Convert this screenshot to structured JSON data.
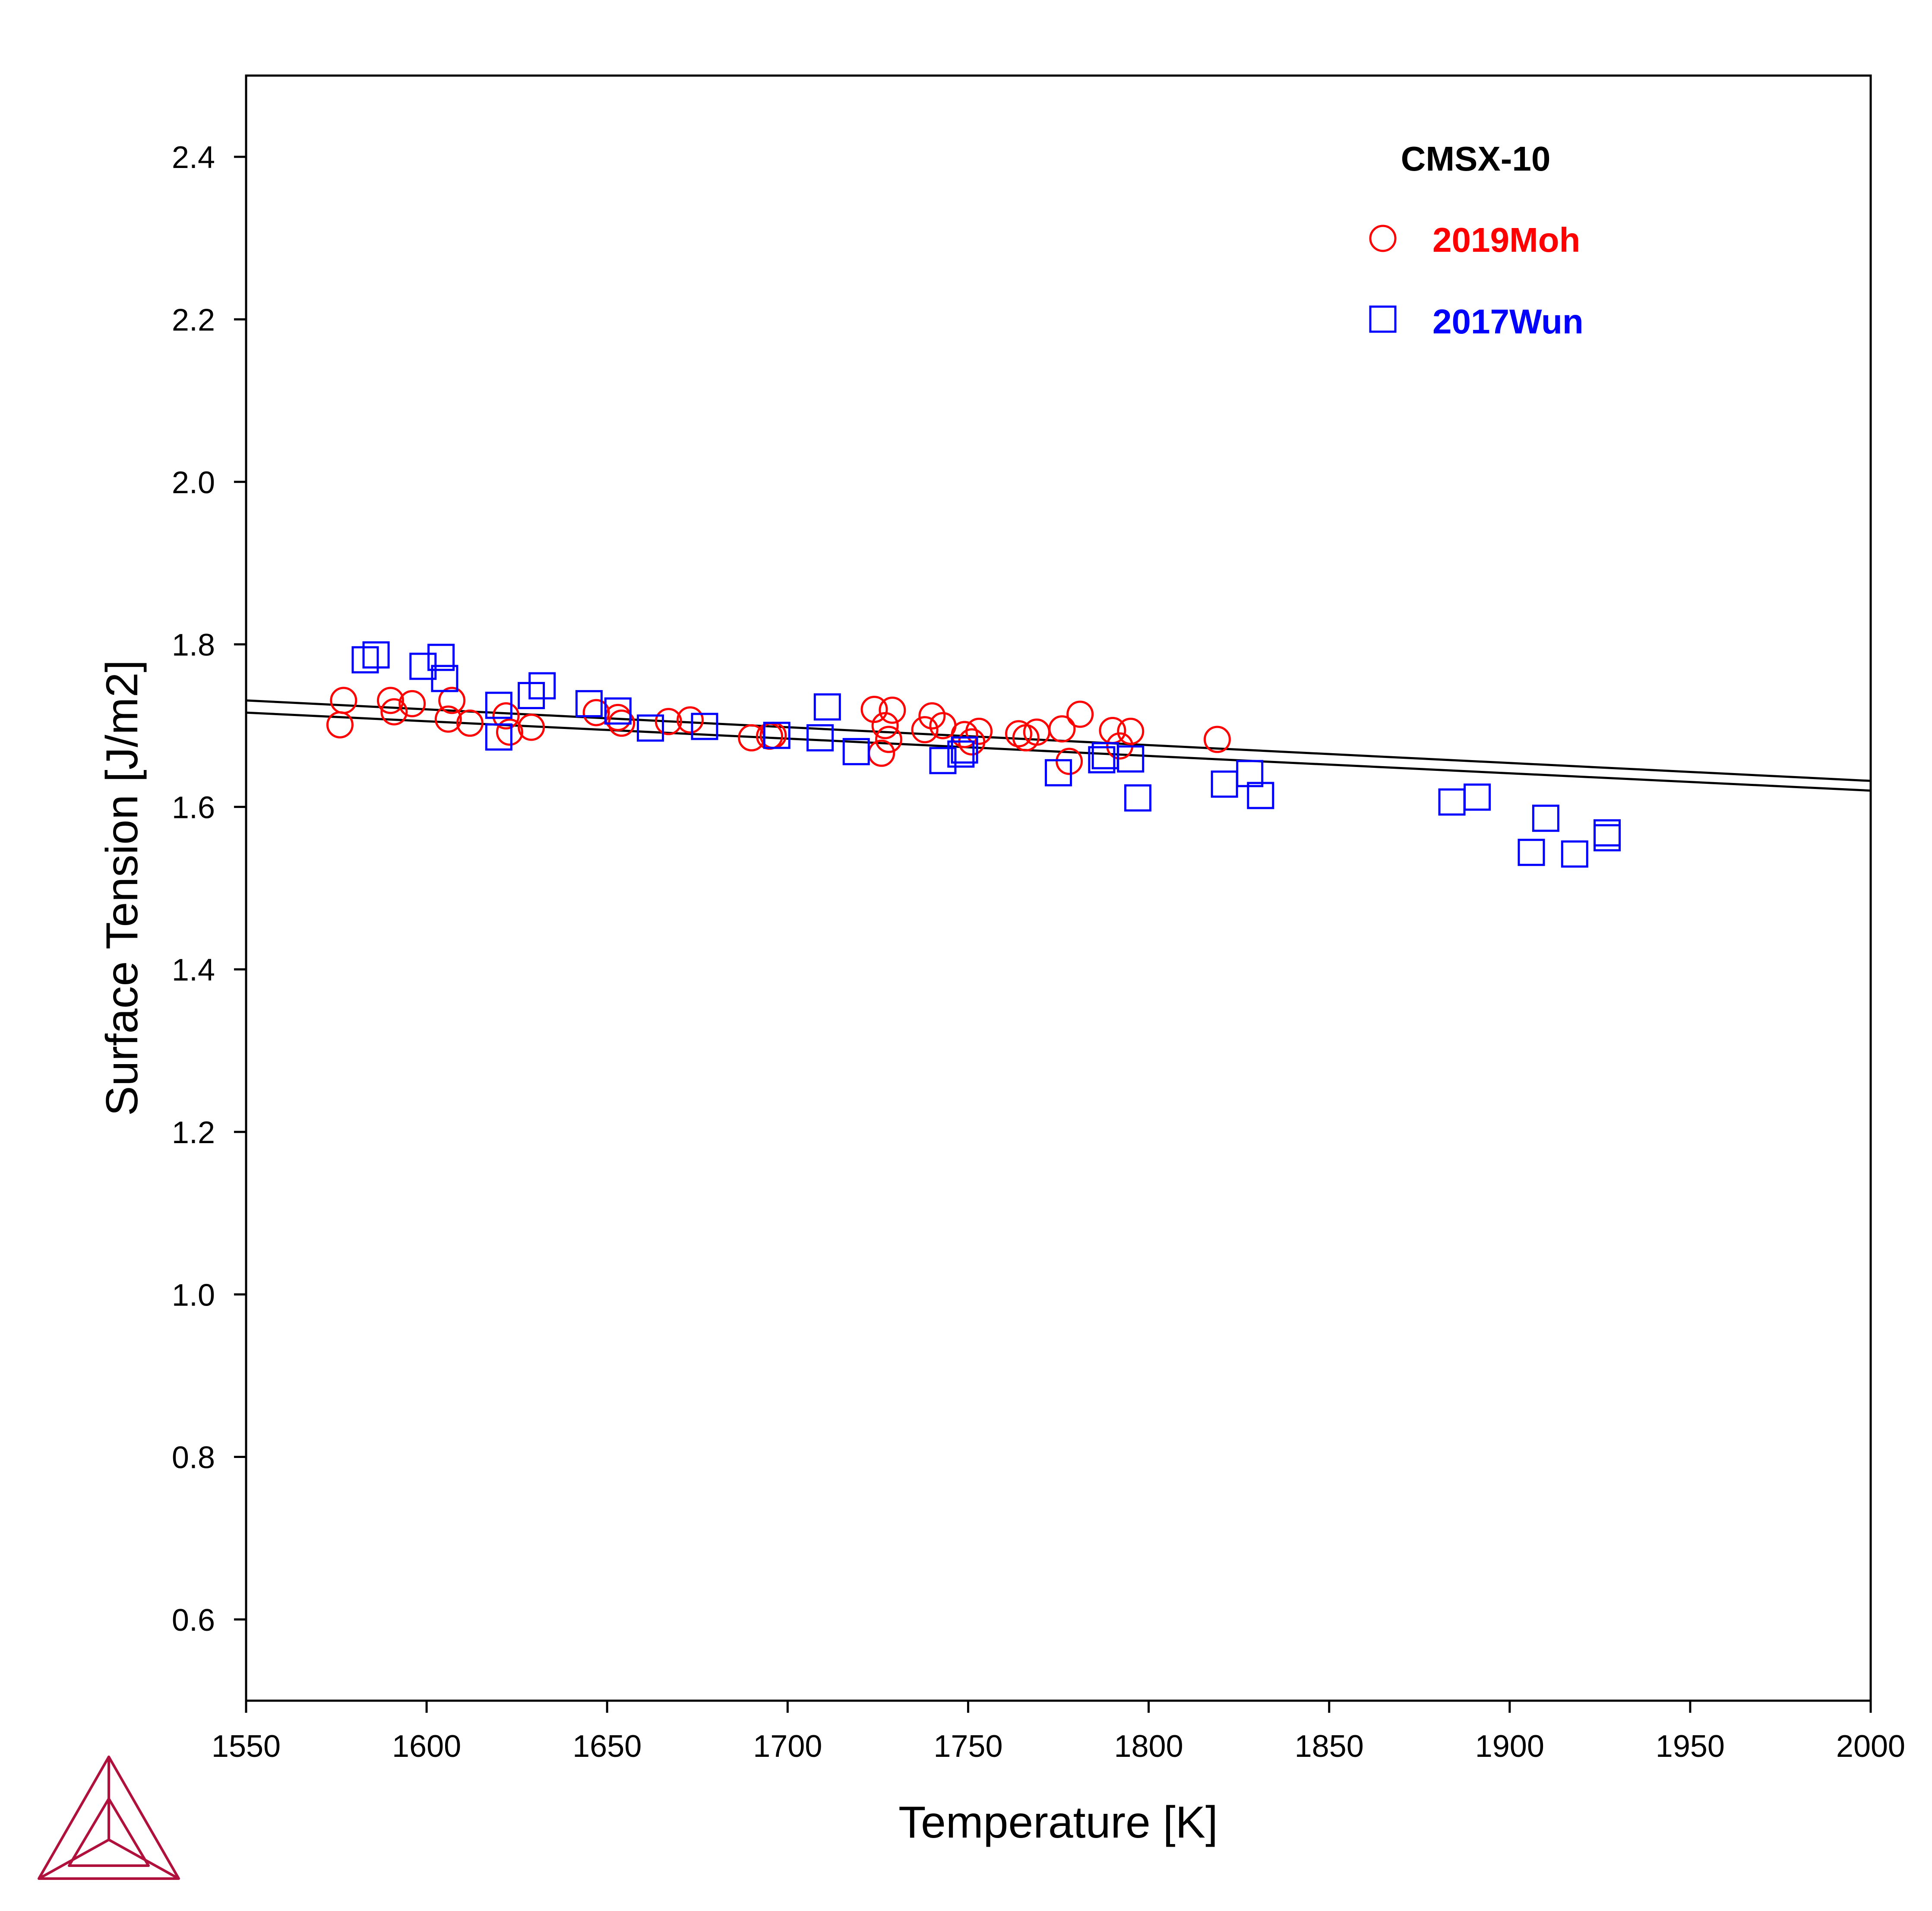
{
  "chart_data": {
    "type": "scatter",
    "title": "CMSX-10",
    "xlabel": "Temperature [K]",
    "ylabel": "Surface Tension [J/m2]",
    "xlim": [
      1550,
      2000
    ],
    "ylim": [
      0.5,
      2.5
    ],
    "xticks": [
      "1550",
      "1600",
      "1650",
      "1700",
      "1750",
      "1800",
      "1850",
      "1900",
      "1950",
      "2000"
    ],
    "yticks": [
      "0.6",
      "0.8",
      "1.0",
      "1.2",
      "1.4",
      "1.6",
      "1.8",
      "2.0",
      "2.2",
      "2.4"
    ],
    "grid": false,
    "legend": "top-right",
    "lines": [
      {
        "x": [
          1550,
          2000
        ],
        "y": [
          1.731,
          1.632
        ]
      },
      {
        "x": [
          1550,
          2000
        ],
        "y": [
          1.716,
          1.62
        ]
      }
    ],
    "series": [
      {
        "name": "2019Moh",
        "marker": "circle",
        "color": "#ff0000",
        "points": [
          [
            1577,
            1.731
          ],
          [
            1576,
            1.701
          ],
          [
            1590,
            1.731
          ],
          [
            1591,
            1.717
          ],
          [
            1596,
            1.727
          ],
          [
            1606,
            1.708
          ],
          [
            1607,
            1.731
          ],
          [
            1612,
            1.703
          ],
          [
            1622,
            1.712
          ],
          [
            1623,
            1.692
          ],
          [
            1629,
            1.698
          ],
          [
            1647,
            1.716
          ],
          [
            1653,
            1.71
          ],
          [
            1654,
            1.703
          ],
          [
            1667,
            1.705
          ],
          [
            1673,
            1.707
          ],
          [
            1690,
            1.685
          ],
          [
            1695,
            1.687
          ],
          [
            1696,
            1.688
          ],
          [
            1724,
            1.72
          ],
          [
            1727,
            1.7
          ],
          [
            1729,
            1.719
          ],
          [
            1726,
            1.666
          ],
          [
            1728,
            1.683
          ],
          [
            1738,
            1.695
          ],
          [
            1740,
            1.712
          ],
          [
            1743,
            1.7
          ],
          [
            1749,
            1.689
          ],
          [
            1751,
            1.68
          ],
          [
            1753,
            1.693
          ],
          [
            1764,
            1.69
          ],
          [
            1766,
            1.685
          ],
          [
            1769,
            1.692
          ],
          [
            1776,
            1.696
          ],
          [
            1778,
            1.656
          ],
          [
            1781,
            1.714
          ],
          [
            1790,
            1.694
          ],
          [
            1792,
            1.675
          ],
          [
            1795,
            1.693
          ],
          [
            1819,
            1.683
          ]
        ]
      },
      {
        "name": "2017Wun",
        "marker": "square",
        "color": "#0000ff",
        "points": [
          [
            1583,
            1.781
          ],
          [
            1586,
            1.787
          ],
          [
            1599,
            1.773
          ],
          [
            1604,
            1.784
          ],
          [
            1605,
            1.758
          ],
          [
            1620,
            1.725
          ],
          [
            1620,
            1.686
          ],
          [
            1629,
            1.737
          ],
          [
            1632,
            1.749
          ],
          [
            1645,
            1.727
          ],
          [
            1653,
            1.718
          ],
          [
            1662,
            1.697
          ],
          [
            1677,
            1.699
          ],
          [
            1697,
            1.688
          ],
          [
            1709,
            1.685
          ],
          [
            1711,
            1.723
          ],
          [
            1719,
            1.668
          ],
          [
            1743,
            1.657
          ],
          [
            1748,
            1.665
          ],
          [
            1749,
            1.67
          ],
          [
            1775,
            1.642
          ],
          [
            1787,
            1.658
          ],
          [
            1788,
            1.663
          ],
          [
            1795,
            1.659
          ],
          [
            1797,
            1.611
          ],
          [
            1821,
            1.628
          ],
          [
            1828,
            1.641
          ],
          [
            1831,
            1.614
          ],
          [
            1884,
            1.606
          ],
          [
            1891,
            1.612
          ],
          [
            1906,
            1.544
          ],
          [
            1910,
            1.586
          ],
          [
            1918,
            1.542
          ],
          [
            1927,
            1.562
          ],
          [
            1927,
            1.568
          ]
        ]
      }
    ]
  }
}
